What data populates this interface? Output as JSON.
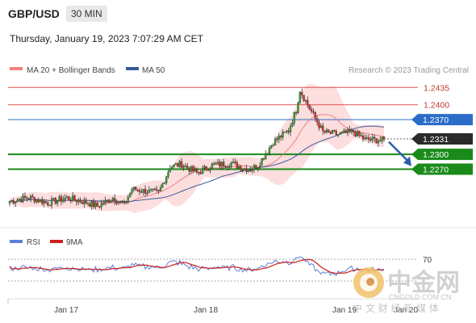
{
  "header": {
    "pair": "GBP/USD",
    "timeframe": "30 MIN",
    "datetime": "Thursday, January 19, 2023 7:07:29 AM CET"
  },
  "legend": {
    "ma20": "MA 20 + Bollinger Bands",
    "ma50": "MA 50",
    "ma20_color": "#f08080",
    "ma50_color": "#3b5a9a",
    "credit": "Research © 2023 Trading Central"
  },
  "chart_data": {
    "type": "candlestick",
    "ylim": [
      1.2155,
      1.2455
    ],
    "current_price": "1.2331",
    "levels": [
      {
        "value": 1.2435,
        "label": "1.2435",
        "kind": "resistance",
        "color": "#e05050"
      },
      {
        "value": 1.24,
        "label": "1.2400",
        "kind": "resistance",
        "color": "#e05050"
      },
      {
        "value": 1.237,
        "label": "1.2370",
        "kind": "pivot",
        "color": "#2a6dc8"
      },
      {
        "value": 1.23,
        "label": "1.2300",
        "kind": "support",
        "color": "#1a8a1a"
      },
      {
        "value": 1.227,
        "label": "1.2270",
        "kind": "support",
        "color": "#1a8a1a"
      }
    ],
    "x_labels": [
      "Jan 17",
      "Jan 18",
      "Jan 19",
      "Jan 20"
    ],
    "arrow_direction": "down",
    "rsi_legend": {
      "rsi": "RSI",
      "ma": "9MA"
    },
    "rsi_levels": [
      "70"
    ],
    "rsi_colors": {
      "rsi": "#5b7fd6",
      "ma": "#cc1f1f"
    }
  },
  "watermark": {
    "name": "中金网",
    "site": "CNGOLD.COM.CN",
    "tagline": "中 文 财 经 新 媒 体"
  }
}
